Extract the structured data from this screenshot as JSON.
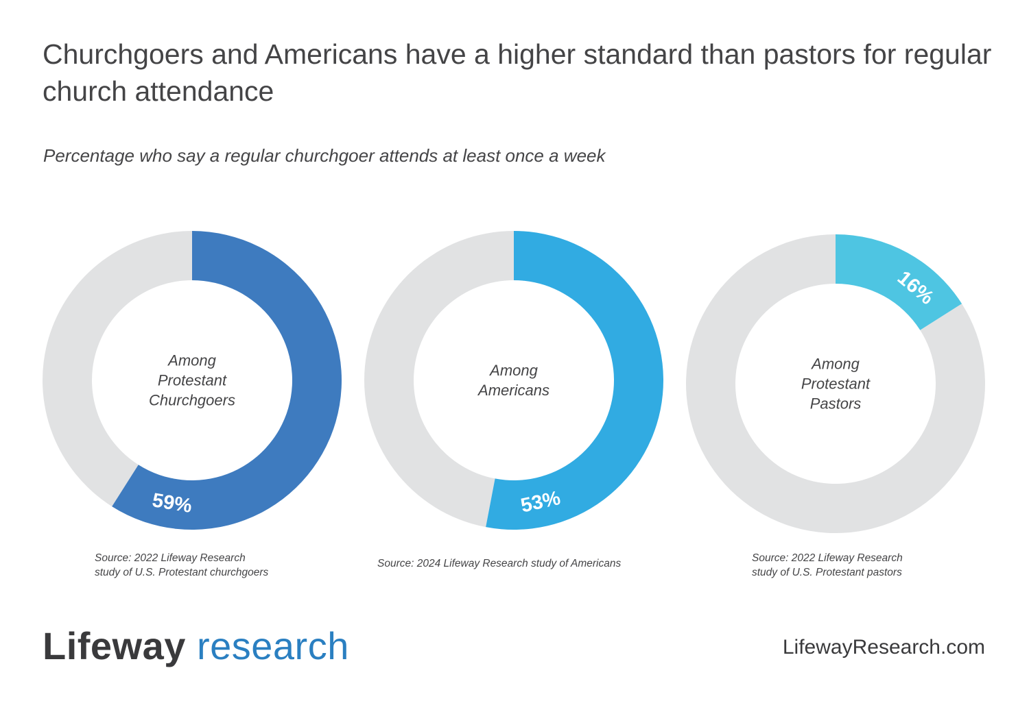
{
  "title": "Churchgoers and Americans have a higher standard than pastors for regular church attendance",
  "subtitle": "Percentage who say a regular churchgoer attends at least once a week",
  "chart_data": [
    {
      "type": "pie",
      "variant": "donut",
      "center_label": [
        "Among",
        "Protestant",
        "Churchgoers"
      ],
      "value": 59,
      "value_label": "59%",
      "color": "#3e7bbf",
      "remainder_color": "#e1e2e3",
      "source": [
        "Source: 2022 Lifeway Research",
        "study of U.S. Protestant churchgoers"
      ]
    },
    {
      "type": "pie",
      "variant": "donut",
      "center_label": [
        "Among",
        "Americans"
      ],
      "value": 53,
      "value_label": "53%",
      "color": "#31abe2",
      "remainder_color": "#e1e2e3",
      "source": [
        "Source: 2024 Lifeway Research study of Americans"
      ]
    },
    {
      "type": "pie",
      "variant": "donut",
      "center_label": [
        "Among",
        "Protestant",
        "Pastors"
      ],
      "value": 16,
      "value_label": "16%",
      "color": "#4ec5e2",
      "remainder_color": "#e1e2e3",
      "source": [
        "Source: 2022 Lifeway Research",
        "study of U.S. Protestant pastors"
      ]
    }
  ],
  "footer": {
    "brand_part1": "Lifeway",
    "brand_part2": "research",
    "website": "LifewayResearch.com"
  }
}
